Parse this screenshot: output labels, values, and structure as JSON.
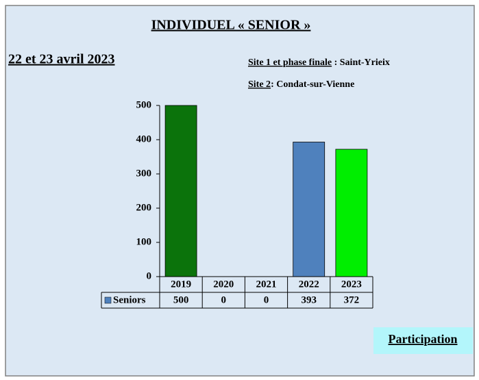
{
  "chart_data": {
    "type": "bar",
    "title": "INDIVIDUEL  « SENIOR »",
    "date": "22 et 23 avril 2023",
    "site1_label": "Site 1 et phase finale",
    "site1_value": " : Saint-Yrieix",
    "site2_label": "Site 2",
    "site2_value": ": Condat-sur-Vienne",
    "button": "Participation",
    "categories": [
      "2019",
      "2020",
      "2021",
      "2022",
      "2023"
    ],
    "series": [
      {
        "name": "Seniors",
        "color": "#4f81bd",
        "values": [
          500,
          0,
          0,
          393,
          372
        ],
        "bar_colors": [
          "#0b730b",
          "#4f81bd",
          "#4f81bd",
          "#4f81bd",
          "#00ee00"
        ]
      }
    ],
    "ylim": [
      0,
      500
    ],
    "yticks": [
      0,
      100,
      200,
      300,
      400,
      500
    ],
    "grid": false
  }
}
